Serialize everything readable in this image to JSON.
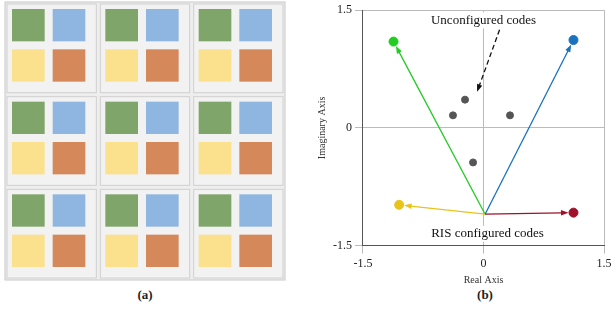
{
  "ris_panel": {
    "label": "(a)",
    "rows": 3,
    "cols": 3,
    "element_colors": [
      [
        "#7fa56b",
        "#8fb6e0"
      ],
      [
        "#fbe08e",
        "#d5885a"
      ]
    ]
  },
  "chart_data": {
    "type": "scatter",
    "panel_label": "(b)",
    "x_label": "Real Axis",
    "y_label": "Imaginary Axis",
    "xlim": [
      -1.5,
      1.5
    ],
    "ylim": [
      -1.5,
      1.5
    ],
    "xticks": [
      -1.5,
      0,
      1.5
    ],
    "yticks": [
      -1.5,
      0,
      1.5
    ],
    "grid": true,
    "series": [
      {
        "color": "#555555",
        "x": [
          -0.38,
          -0.23,
          0.33,
          -0.13
        ],
        "y": [
          0.16,
          0.36,
          0.16,
          -0.44
        ]
      },
      {
        "colors": [
          "#22cc22",
          "#1a72bd",
          "#e8c41a",
          "#a0102a"
        ],
        "x": [
          -1.12,
          1.12,
          -1.05,
          1.12
        ],
        "y": [
          1.1,
          1.12,
          -0.98,
          -1.08
        ],
        "arrows_from": [
          0.02,
          -1.1
        ]
      }
    ],
    "annotations": [
      {
        "text": "Unconfigured codes",
        "x": 0.0,
        "y": 1.37,
        "arrow_from": [
          0.2,
          1.25
        ],
        "arrow_to": [
          -0.08,
          0.46
        ],
        "line_style": "dashed"
      },
      {
        "text": "RIS configured codes",
        "x": 0.05,
        "y": -1.35
      }
    ]
  }
}
